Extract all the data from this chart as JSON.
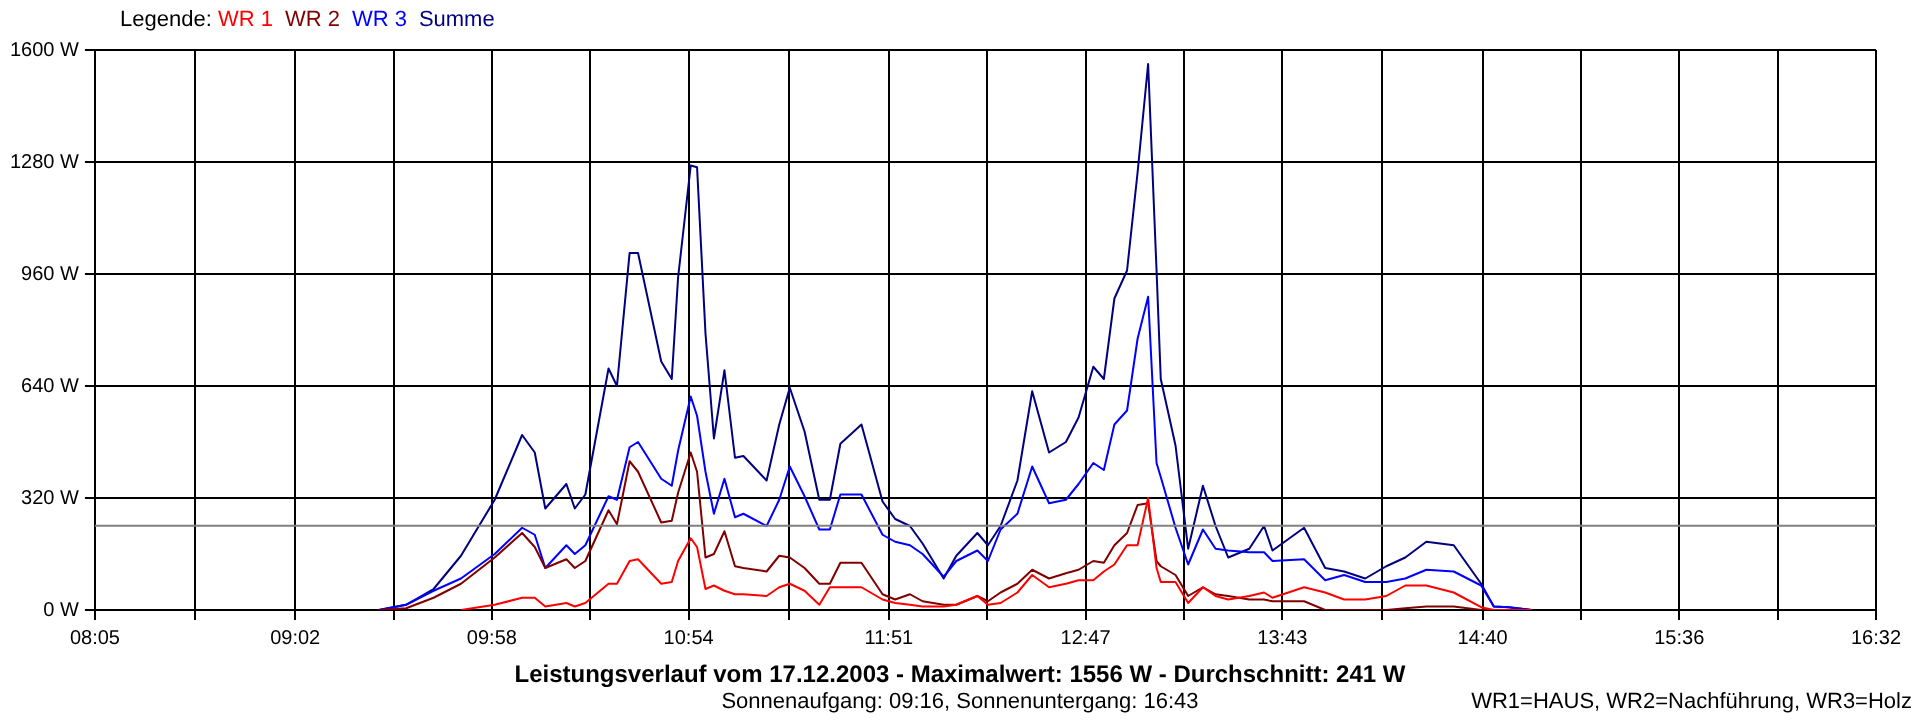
{
  "chart_data": {
    "type": "line",
    "title": "Leistungsverlauf vom 17.12.2003 - Maximalwert: 1556 W - Durchschnitt: 241 W",
    "subtitle": "Sonnenaufgang: 09:16, Sonnenuntergang: 16:43",
    "legend_title": "Legende:",
    "annotations": [
      "WR1=HAUS, WR2=Nachführung, WR3=Holz"
    ],
    "x": [
      9.43,
      9.56,
      9.69,
      9.82,
      9.98,
      10.11,
      10.17,
      10.22,
      10.32,
      10.36,
      10.41,
      10.52,
      10.56,
      10.62,
      10.66,
      10.77,
      10.82,
      10.85,
      10.91,
      10.94,
      10.98,
      11.02,
      11.07,
      11.12,
      11.16,
      11.27,
      11.33,
      11.38,
      11.45,
      11.52,
      11.57,
      11.62,
      11.72,
      11.82,
      11.88,
      11.95,
      12.01,
      12.11,
      12.17,
      12.27,
      12.32,
      12.38,
      12.46,
      12.53,
      12.61,
      12.69,
      12.75,
      12.82,
      12.87,
      12.92,
      12.98,
      13.03,
      13.08,
      13.12,
      13.14,
      13.21,
      13.27,
      13.34,
      13.4,
      13.46,
      13.56,
      13.63,
      13.67,
      13.82,
      13.92,
      14.01,
      14.11,
      14.21,
      14.3,
      14.4,
      14.53,
      14.66,
      14.72,
      14.79,
      14.9
    ],
    "series": [
      {
        "name": "WR 1",
        "color": "#ff0000",
        "values": [
          null,
          null,
          null,
          0,
          15,
          35,
          35,
          10,
          20,
          10,
          20,
          75,
          75,
          140,
          145,
          75,
          80,
          140,
          205,
          180,
          60,
          70,
          55,
          45,
          45,
          40,
          65,
          75,
          55,
          15,
          65,
          65,
          65,
          30,
          20,
          15,
          10,
          10,
          15,
          40,
          15,
          20,
          50,
          100,
          65,
          75,
          85,
          85,
          110,
          130,
          185,
          185,
          320,
          120,
          80,
          80,
          20,
          65,
          40,
          30,
          40,
          50,
          35,
          65,
          50,
          30,
          30,
          40,
          70,
          70,
          50,
          8,
          0,
          0,
          0
        ]
      },
      {
        "name": "WR 2",
        "color": "#800000",
        "values": [
          0,
          5,
          35,
          75,
          150,
          220,
          180,
          120,
          145,
          120,
          140,
          285,
          245,
          425,
          395,
          250,
          255,
          335,
          450,
          395,
          150,
          160,
          225,
          125,
          120,
          110,
          155,
          150,
          120,
          75,
          75,
          135,
          135,
          45,
          30,
          45,
          25,
          15,
          15,
          40,
          25,
          50,
          75,
          115,
          90,
          105,
          115,
          140,
          135,
          185,
          220,
          300,
          305,
          140,
          125,
          100,
          40,
          65,
          45,
          40,
          30,
          30,
          25,
          25,
          0,
          0,
          0,
          0,
          5,
          10,
          10,
          0,
          0,
          0,
          0
        ]
      },
      {
        "name": "WR 3",
        "color": "#0000ff",
        "values": [
          0,
          15,
          55,
          90,
          160,
          235,
          215,
          120,
          185,
          160,
          185,
          325,
          315,
          465,
          480,
          375,
          355,
          455,
          610,
          555,
          395,
          275,
          375,
          265,
          275,
          240,
          315,
          410,
          325,
          230,
          230,
          330,
          330,
          215,
          195,
          185,
          160,
          95,
          140,
          170,
          140,
          230,
          275,
          410,
          305,
          315,
          360,
          420,
          400,
          530,
          570,
          775,
          895,
          420,
          380,
          235,
          130,
          230,
          175,
          170,
          165,
          165,
          140,
          145,
          85,
          100,
          80,
          80,
          90,
          115,
          110,
          70,
          10,
          8,
          0
        ]
      },
      {
        "name": "Summe",
        "color": "#000080",
        "values": [
          0,
          15,
          60,
          155,
          315,
          500,
          450,
          290,
          360,
          290,
          330,
          690,
          640,
          1020,
          1020,
          710,
          660,
          950,
          1270,
          1265,
          790,
          490,
          685,
          435,
          440,
          370,
          530,
          635,
          510,
          315,
          315,
          475,
          530,
          310,
          260,
          240,
          190,
          90,
          155,
          220,
          185,
          240,
          370,
          625,
          450,
          480,
          550,
          695,
          660,
          890,
          970,
          1250,
          1560,
          970,
          660,
          470,
          175,
          355,
          240,
          150,
          175,
          240,
          170,
          235,
          120,
          110,
          90,
          125,
          150,
          195,
          185,
          75,
          10,
          8,
          0
        ]
      }
    ],
    "xlim": [
      8.0833,
      16.5333
    ],
    "xticks": [
      {
        "value": 8.0833,
        "label": "08:05"
      },
      {
        "value": 8.5583,
        "label": null
      },
      {
        "value": 9.0333,
        "label": "09:02"
      },
      {
        "value": 9.5,
        "label": null
      },
      {
        "value": 9.9667,
        "label": "09:58"
      },
      {
        "value": 10.4333,
        "label": null
      },
      {
        "value": 10.9,
        "label": "10:54"
      },
      {
        "value": 11.375,
        "label": null
      },
      {
        "value": 11.85,
        "label": "11:51"
      },
      {
        "value": 12.3167,
        "label": null
      },
      {
        "value": 12.7833,
        "label": "12:47"
      },
      {
        "value": 13.25,
        "label": null
      },
      {
        "value": 13.7167,
        "label": "13:43"
      },
      {
        "value": 14.1917,
        "label": null
      },
      {
        "value": 14.6667,
        "label": "14:40"
      },
      {
        "value": 15.1333,
        "label": null
      },
      {
        "value": 15.6,
        "label": "15:36"
      },
      {
        "value": 16.0667,
        "label": null
      },
      {
        "value": 16.5333,
        "label": "16:32"
      }
    ],
    "ylim": [
      0,
      1600
    ],
    "yticks": [
      {
        "value": 0,
        "label": "0 W"
      },
      {
        "value": 320,
        "label": "320 W"
      },
      {
        "value": 640,
        "label": "640 W"
      },
      {
        "value": 960,
        "label": "960 W"
      },
      {
        "value": 1280,
        "label": "1280 W"
      },
      {
        "value": 1600,
        "label": "1600 W"
      }
    ],
    "ref_lines": [
      {
        "axis": "y",
        "value": 241,
        "color": "#808080"
      }
    ],
    "grid": true,
    "legend": "top left",
    "marker": "none",
    "line_style": "solid"
  }
}
